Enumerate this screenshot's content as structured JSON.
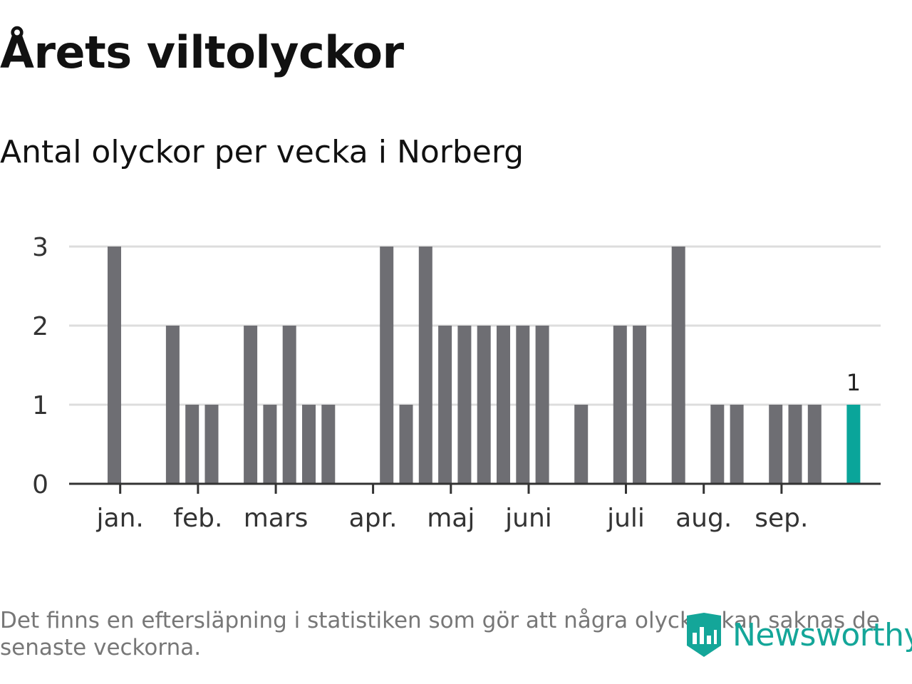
{
  "header": {
    "title": "Årets viltolyckor",
    "subtitle": "Antal olyckor per vecka i Norberg"
  },
  "footer": {
    "note": "Det finns en eftersläpning i statistiken som gör att några olyckor kan saknas de senaste veckorna.",
    "logo_text": "Newsworthy"
  },
  "colors": {
    "bar": "#6e6e73",
    "highlight": "#0aa59a",
    "grid": "#dddddd",
    "axis": "#333333",
    "brand": "#14a699"
  },
  "chart_data": {
    "type": "bar",
    "title": "Årets viltolyckor",
    "subtitle": "Antal olyckor per vecka i Norberg",
    "xlabel": "",
    "ylabel": "",
    "x_unit": "week",
    "ylim": [
      0,
      3
    ],
    "yticks": [
      0,
      1,
      2,
      3
    ],
    "grid": true,
    "weeks": [
      1,
      2,
      3,
      4,
      5,
      6,
      7,
      8,
      9,
      10,
      11,
      12,
      13,
      14,
      15,
      16,
      17,
      18,
      19,
      20,
      21,
      22,
      23,
      24,
      25,
      26,
      27,
      28,
      29,
      30,
      31,
      32,
      33,
      34,
      35,
      36,
      37,
      38,
      39
    ],
    "values": [
      3,
      0,
      0,
      2,
      1,
      1,
      0,
      2,
      1,
      2,
      1,
      1,
      0,
      0,
      3,
      1,
      3,
      2,
      2,
      2,
      2,
      2,
      2,
      0,
      1,
      0,
      2,
      2,
      0,
      3,
      0,
      1,
      1,
      0,
      1,
      1,
      1,
      0,
      1
    ],
    "highlight_week": 39,
    "highlight_label": "1",
    "month_labels": [
      {
        "label": "jan.",
        "week": 1.3
      },
      {
        "label": "feb.",
        "week": 5.3
      },
      {
        "label": "mars",
        "week": 9.3
      },
      {
        "label": "apr.",
        "week": 14.3
      },
      {
        "label": "maj",
        "week": 18.3
      },
      {
        "label": "juni",
        "week": 22.3
      },
      {
        "label": "juli",
        "week": 27.3
      },
      {
        "label": "aug.",
        "week": 31.3
      },
      {
        "label": "sep.",
        "week": 35.3
      }
    ]
  }
}
